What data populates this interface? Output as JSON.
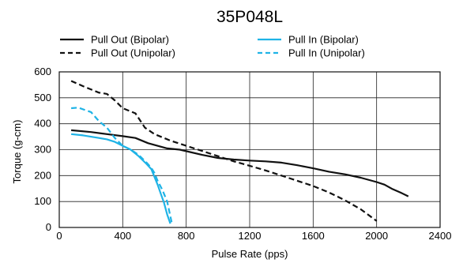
{
  "chart_data": {
    "type": "line",
    "title": "35P048L",
    "xlabel": "Pulse Rate (pps)",
    "ylabel": "Torque (g-cm)",
    "xlim": [
      0,
      2400
    ],
    "ylim": [
      0,
      600
    ],
    "xticks": [
      "0",
      "400",
      "800",
      "1200",
      "1600",
      "2000",
      "2400"
    ],
    "yticks": [
      "0",
      "100",
      "200",
      "300",
      "400",
      "500",
      "600"
    ],
    "grid": true,
    "legend_position": "top",
    "series": [
      {
        "name": "Pull Out (Bipolar)",
        "color": "#111111",
        "style": "solid",
        "x": [
          75,
          200,
          300,
          400,
          480,
          560,
          680,
          760,
          900,
          1000,
          1100,
          1200,
          1300,
          1400,
          1500,
          1600,
          1700,
          1800,
          1900,
          2000,
          2050,
          2100,
          2150,
          2200
        ],
        "y": [
          375,
          368,
          360,
          352,
          345,
          325,
          305,
          300,
          280,
          268,
          262,
          258,
          255,
          250,
          240,
          228,
          215,
          205,
          192,
          175,
          165,
          148,
          135,
          120
        ]
      },
      {
        "name": "Pull Out (Unipolar)",
        "color": "#111111",
        "style": "dashed",
        "x": [
          75,
          150,
          250,
          300,
          350,
          400,
          480,
          540,
          600,
          700,
          800,
          900,
          1000,
          1100,
          1200,
          1300,
          1400,
          1500,
          1600,
          1700,
          1800,
          1900,
          2000
        ],
        "y": [
          565,
          545,
          520,
          515,
          490,
          460,
          440,
          385,
          360,
          335,
          315,
          295,
          275,
          255,
          238,
          220,
          200,
          180,
          160,
          135,
          105,
          70,
          25
        ]
      },
      {
        "name": "Pull In (Bipolar)",
        "color": "#1fb3e6",
        "style": "solid",
        "x": [
          75,
          150,
          250,
          300,
          350,
          400,
          450,
          500,
          550,
          580,
          600,
          620,
          640,
          660,
          680,
          700
        ],
        "y": [
          360,
          355,
          345,
          340,
          330,
          315,
          300,
          275,
          245,
          225,
          195,
          165,
          130,
          95,
          50,
          15
        ]
      },
      {
        "name": "Pull In (Unipolar)",
        "color": "#1fb3e6",
        "style": "dashed",
        "x": [
          75,
          120,
          200,
          250,
          300,
          350,
          400,
          450,
          500,
          550,
          580,
          600,
          620,
          650,
          680,
          710
        ],
        "y": [
          460,
          462,
          445,
          410,
          385,
          345,
          315,
          300,
          280,
          250,
          230,
          210,
          180,
          145,
          100,
          15
        ]
      }
    ]
  }
}
